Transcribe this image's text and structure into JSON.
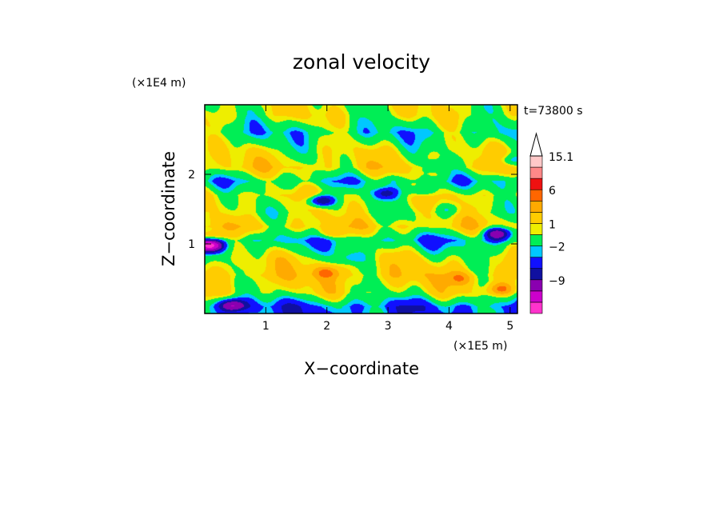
{
  "chart_data": {
    "type": "heatmap",
    "title": "zonal velocity",
    "xlabel": "X−coordinate",
    "ylabel": "Z−coordinate",
    "x_unit": "(×1E5 m)",
    "y_unit": "(×1E4 m)",
    "annotation": "t=73800 s",
    "xlim": [
      0,
      5.12
    ],
    "ylim": [
      0,
      3.0
    ],
    "x_ticks": [
      1,
      2,
      3,
      4,
      5
    ],
    "y_ticks": [
      1,
      2
    ],
    "x_tick_labels": [
      "1",
      "2",
      "3",
      "4",
      "5"
    ],
    "y_tick_labels": [
      "1",
      "2"
    ],
    "colorbar": {
      "levels": [
        -15.1,
        -12,
        -9,
        -6,
        -4,
        -2,
        -1,
        1,
        2,
        4,
        6,
        9,
        12,
        15.1
      ],
      "labels": [
        {
          "value": 15.1,
          "text": "15.1"
        },
        {
          "value": 6,
          "text": "6"
        },
        {
          "value": 1,
          "text": "1"
        },
        {
          "value": -2,
          "text": "−2"
        },
        {
          "value": -9,
          "text": "−9"
        }
      ],
      "colors": [
        "#ff33cc",
        "#cc00cc",
        "#8a00b0",
        "#1010a0",
        "#1010ff",
        "#00c8ff",
        "#00ee55",
        "#eeee00",
        "#ffcc00",
        "#ffaa00",
        "#ff6600",
        "#ee1111",
        "#ff8888",
        "#ffc8c8"
      ],
      "extend": "max"
    },
    "bands": [
      {
        "z": 0.1,
        "value": -2.5
      },
      {
        "z": 0.3,
        "value": 1.5
      },
      {
        "z": 0.55,
        "value": 3.0
      },
      {
        "z": 0.8,
        "value": 1.5
      },
      {
        "z": 1.05,
        "value": -1.5
      },
      {
        "z": 1.25,
        "value": 2.5
      },
      {
        "z": 1.45,
        "value": 1.2
      },
      {
        "z": 1.7,
        "value": 2.0
      },
      {
        "z": 1.9,
        "value": -0.8
      },
      {
        "z": 2.1,
        "value": 2.5
      },
      {
        "z": 2.35,
        "value": 1.2
      },
      {
        "z": 2.6,
        "value": -0.8
      },
      {
        "z": 2.85,
        "value": 1.5
      }
    ],
    "features": [
      {
        "x": 0.08,
        "z": 0.98,
        "value": -12
      },
      {
        "x": 0.1,
        "z": 1.1,
        "value": 5
      },
      {
        "x": 0.45,
        "z": 0.12,
        "value": -8
      },
      {
        "x": 1.9,
        "z": 1.62,
        "value": -9
      },
      {
        "x": 2.95,
        "z": 1.72,
        "value": -6
      },
      {
        "x": 3.55,
        "z": 1.75,
        "value": -4
      },
      {
        "x": 4.8,
        "z": 1.15,
        "value": -9
      },
      {
        "x": 4.85,
        "z": 0.35,
        "value": 5
      },
      {
        "x": 2.0,
        "z": 0.6,
        "value": 3.5
      },
      {
        "x": 2.0,
        "z": 1.15,
        "value": 3.0
      },
      {
        "x": 4.2,
        "z": 0.5,
        "value": 3.0
      },
      {
        "x": 3.8,
        "z": 2.12,
        "value": -3
      },
      {
        "x": 5.0,
        "z": 2.2,
        "value": -4
      },
      {
        "x": 2.4,
        "z": 0.8,
        "value": -3
      },
      {
        "x": 4.0,
        "z": 1.5,
        "value": -2.5
      }
    ]
  }
}
